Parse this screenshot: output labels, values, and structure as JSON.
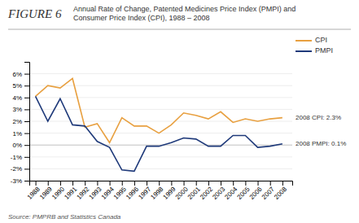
{
  "chart_data": {
    "type": "line",
    "title": "FIGURE 6",
    "subtitle": "Annual Rate of Change, Patented Medicines Price Index (PMPI) and\nConsumer Price Index (CPI), 1988 – 2008",
    "source": "Source: PMPRB and Statistics Canada",
    "x": [
      1988,
      1989,
      1990,
      1991,
      1992,
      1993,
      1994,
      1995,
      1996,
      1997,
      1998,
      1999,
      2000,
      2001,
      2002,
      2003,
      2004,
      2005,
      2006,
      2007,
      2008
    ],
    "series": [
      {
        "name": "CPI",
        "color": "#E8A040",
        "values": [
          4.1,
          5.0,
          4.8,
          5.6,
          1.5,
          1.8,
          0.2,
          2.3,
          1.6,
          1.6,
          1.0,
          1.7,
          2.7,
          2.5,
          2.2,
          2.8,
          1.9,
          2.2,
          2.0,
          2.2,
          2.3
        ]
      },
      {
        "name": "PMPI",
        "color": "#1F3A7A",
        "values": [
          4.1,
          2.0,
          3.9,
          1.7,
          1.6,
          0.3,
          -0.2,
          -2.1,
          -2.2,
          -0.1,
          -0.1,
          0.2,
          0.6,
          0.5,
          -0.1,
          -0.1,
          0.8,
          0.8,
          -0.2,
          -0.1,
          0.1
        ]
      }
    ],
    "annotations": [
      "2008 CPI: 2.3%",
      "2008 PMPI: 0.1%"
    ],
    "xlim": [
      1987.5,
      2008.8
    ],
    "xticks": [
      1988,
      1989,
      1990,
      1991,
      1992,
      1993,
      1994,
      1995,
      1996,
      1997,
      1998,
      1999,
      2000,
      2001,
      2002,
      2003,
      2004,
      2005,
      2006,
      2007,
      2008
    ],
    "ylim": [
      -3,
      7
    ],
    "yticks": [
      {
        "value": -3,
        "label": "-3%"
      },
      {
        "value": -2,
        "label": "-2%"
      },
      {
        "value": -1,
        "label": "-1%"
      },
      {
        "value": 0,
        "label": "0%"
      },
      {
        "value": 1,
        "label": "1%"
      },
      {
        "value": 2,
        "label": "2%"
      },
      {
        "value": 3,
        "label": "3%"
      },
      {
        "value": 4,
        "label": "4%"
      },
      {
        "value": 5,
        "label": "5%"
      },
      {
        "value": 6,
        "label": "6%"
      }
    ],
    "grid": true,
    "legend": "upper right"
  }
}
